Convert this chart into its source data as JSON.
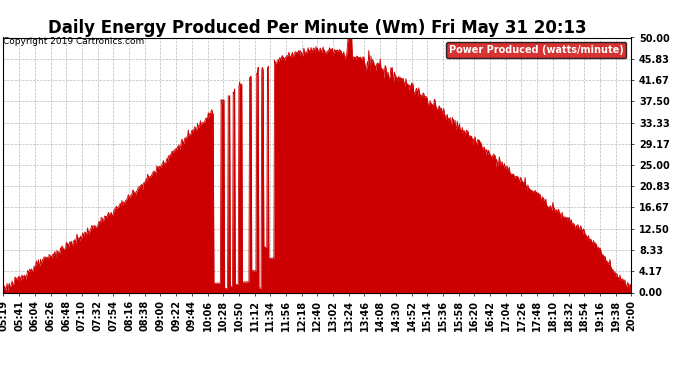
{
  "title": "Daily Energy Produced Per Minute (Wm) Fri May 31 20:13",
  "copyright": "Copyright 2019 Cartronics.com",
  "legend_label": "Power Produced (watts/minute)",
  "legend_bg": "#cc0000",
  "legend_fg": "#ffffff",
  "ymin": 0.0,
  "ymax": 50.0,
  "yticks": [
    0.0,
    4.17,
    8.33,
    12.5,
    16.67,
    20.83,
    25.0,
    29.17,
    33.33,
    37.5,
    41.67,
    45.83,
    50.0
  ],
  "ytick_labels": [
    "0.00",
    "4.17",
    "8.33",
    "12.50",
    "16.67",
    "20.83",
    "25.00",
    "29.17",
    "33.33",
    "37.50",
    "41.67",
    "45.83",
    "50.00"
  ],
  "bg_color": "#ffffff",
  "plot_bg_color": "#ffffff",
  "grid_color": "#aaaaaa",
  "line_color": "#cc0000",
  "fill_color": "#cc0000",
  "title_fontsize": 12,
  "tick_fontsize": 7,
  "xtick_labels": [
    "05:19",
    "05:41",
    "06:04",
    "06:26",
    "06:48",
    "07:10",
    "07:32",
    "07:54",
    "08:16",
    "08:38",
    "09:00",
    "09:22",
    "09:44",
    "10:06",
    "10:28",
    "10:50",
    "11:12",
    "11:34",
    "11:56",
    "12:18",
    "12:40",
    "13:02",
    "13:24",
    "13:46",
    "14:08",
    "14:30",
    "14:52",
    "15:14",
    "15:36",
    "15:58",
    "16:20",
    "16:42",
    "17:04",
    "17:26",
    "17:48",
    "18:10",
    "18:32",
    "18:54",
    "19:16",
    "19:38",
    "20:00"
  ]
}
